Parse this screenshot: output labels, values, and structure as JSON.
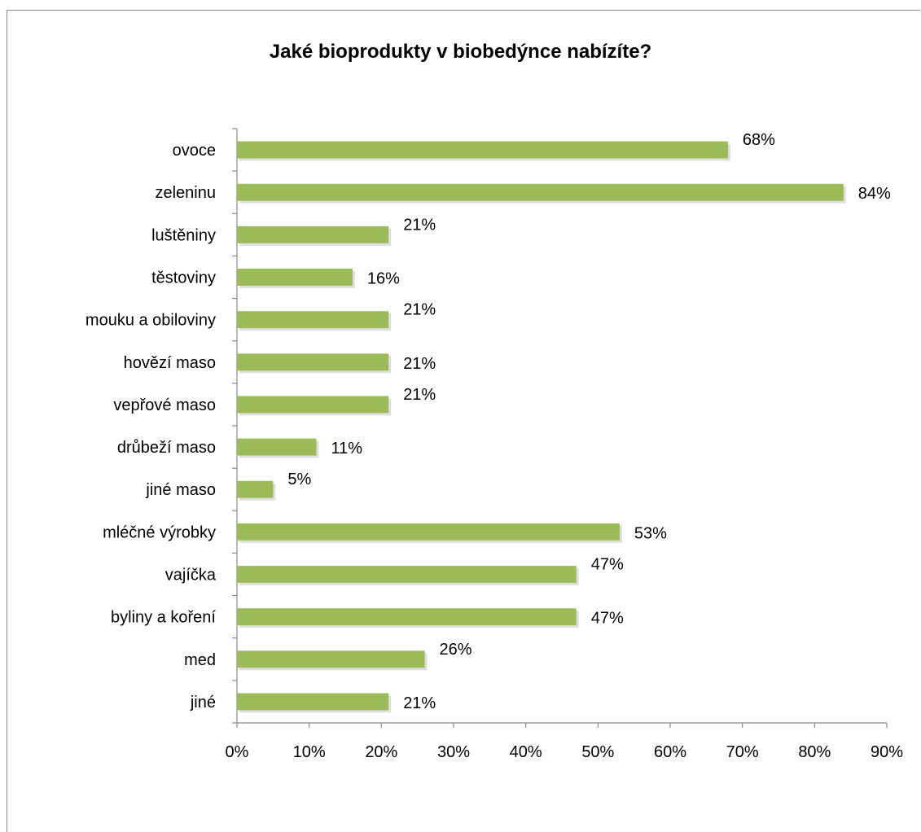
{
  "chart_data": {
    "type": "bar",
    "orientation": "horizontal",
    "title": "Jaké bioprodukty v biobedýnce nabízíte?",
    "categories": [
      "ovoce",
      "zeleninu",
      "luštěniny",
      "těstoviny",
      "mouku a obiloviny",
      "hovězí maso",
      "vepřové maso",
      "drůbeží maso",
      "jiné maso",
      "mléčné výrobky",
      "vajíčka",
      "byliny a koření",
      "med",
      "jiné"
    ],
    "values": [
      68,
      84,
      21,
      16,
      21,
      21,
      21,
      11,
      5,
      53,
      47,
      47,
      26,
      21
    ],
    "data_labels": [
      "68%",
      "84%",
      "21%",
      "16%",
      "21%",
      "21%",
      "21%",
      "11%",
      "5%",
      "53%",
      "47%",
      "47%",
      "26%",
      "21%"
    ],
    "x_ticks": [
      "0%",
      "10%",
      "20%",
      "30%",
      "40%",
      "50%",
      "60%",
      "70%",
      "80%",
      "90%"
    ],
    "xlim": [
      0,
      90
    ],
    "xlabel": "",
    "ylabel": "",
    "grid": false,
    "legend": "none",
    "bar_color": "#9bbb59"
  }
}
